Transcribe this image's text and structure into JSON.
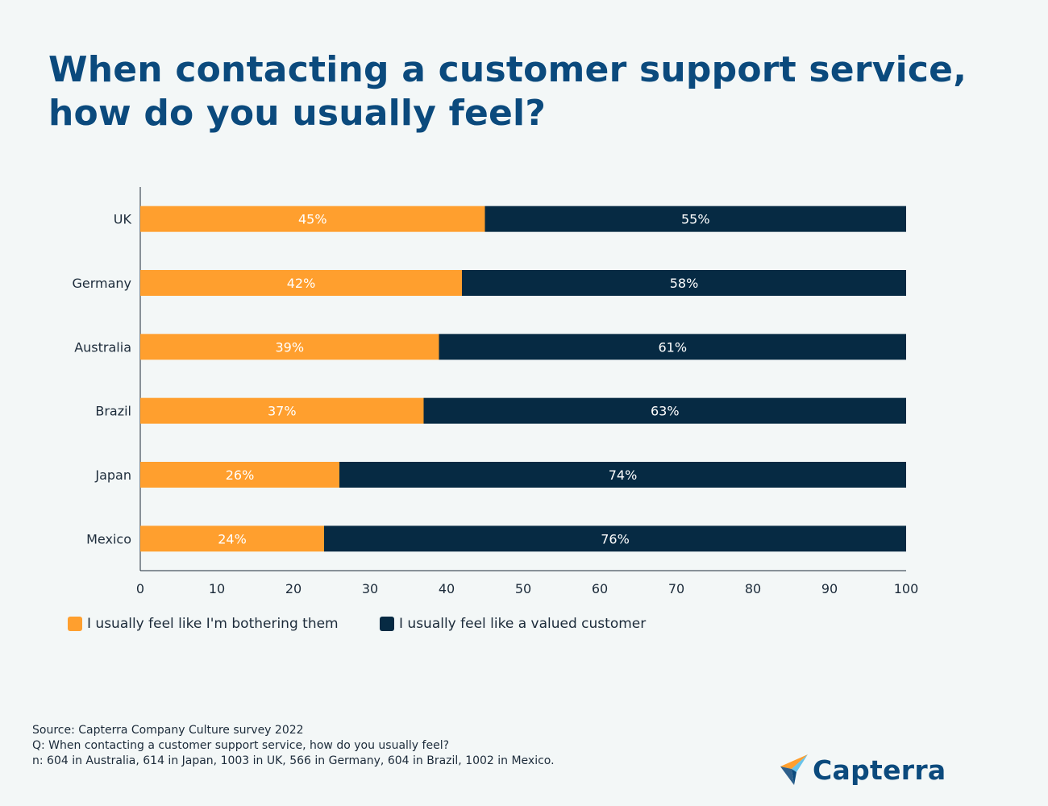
{
  "title_lines": [
    "When contacting a customer support service,",
    "how do you usually feel?"
  ],
  "chart_data": {
    "type": "bar",
    "orientation": "horizontal",
    "stacked": true,
    "title": "When contacting a customer support service, how do you usually feel?",
    "categories": [
      "UK",
      "Germany",
      "Australia",
      "Brazil",
      "Japan",
      "Mexico"
    ],
    "series": [
      {
        "name": "I usually feel like I'm bothering them",
        "color": "#ff9f2e",
        "values": [
          45,
          42,
          39,
          37,
          26,
          24
        ],
        "labels": [
          "45%",
          "42%",
          "39%",
          "37%",
          "26%",
          "24%"
        ]
      },
      {
        "name": "I usually feel like a valued customer",
        "color": "#062a43",
        "values": [
          55,
          58,
          61,
          63,
          74,
          76
        ],
        "labels": [
          "55%",
          "58%",
          "61%",
          "63%",
          "74%",
          "76%"
        ]
      }
    ],
    "xlim": [
      0,
      100
    ],
    "xticks": [
      0,
      10,
      20,
      30,
      40,
      50,
      60,
      70,
      80,
      90,
      100
    ],
    "xlabel": "",
    "ylabel": "",
    "grid": false,
    "legend_position": "bottom-left"
  },
  "footer": {
    "source": "Source: Capterra Company Culture survey 2022",
    "question": "Q: When contacting a customer support service, how do you usually feel?",
    "sample": "n: 604 in Australia, 614 in Japan, 1003 in UK, 566 in Germany, 604 in Brazil, 1002 in Mexico."
  },
  "brand": {
    "name": "Capterra",
    "color": "#0b4a7d"
  }
}
